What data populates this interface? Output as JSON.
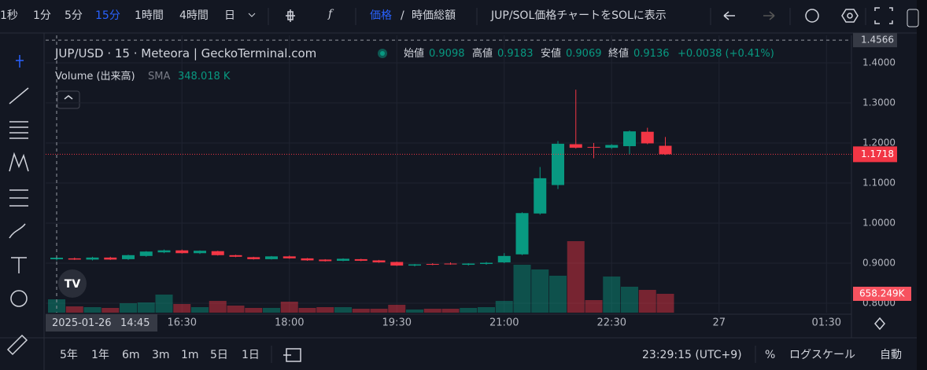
{
  "toolbar": {
    "intervals": [
      "1秒",
      "1分",
      "5分",
      "15分",
      "1時間",
      "4時間",
      "日"
    ],
    "active_interval": "15分",
    "price_toggle": "価格",
    "separator": "/",
    "market_cap": "時価総額",
    "sol_toggle": "JUP/SOL価格チャートをSOLに表示"
  },
  "legend": {
    "title": "JUP/USD · 15 · Meteora | GeckoTerminal.com",
    "open_label": "始値",
    "open": "0.9098",
    "high_label": "高値",
    "high": "0.9183",
    "low_label": "安値",
    "low": "0.9069",
    "close_label": "終値",
    "close": "0.9136",
    "change": "+0.0038 (+0.41%)",
    "volume_title": "Volume (出来高)",
    "sma_label": "SMA",
    "sma_value": "348.018 K"
  },
  "bottom_bar": {
    "ranges": [
      "5年",
      "1年",
      "6m",
      "3m",
      "1m",
      "5日",
      "1日"
    ],
    "clock": "23:29:15 (UTC+9)",
    "percent": "%",
    "log_scale": "ログスケール",
    "auto": "自動"
  },
  "chart_data": {
    "type": "candlestick",
    "x": [
      "14:45",
      "15:00",
      "15:15",
      "15:30",
      "15:45",
      "16:00",
      "16:15",
      "16:30",
      "16:45",
      "17:00",
      "17:15",
      "17:30",
      "17:45",
      "18:00",
      "18:15",
      "18:30",
      "18:45",
      "19:00",
      "19:15",
      "19:30",
      "19:45",
      "20:00",
      "20:15",
      "20:30",
      "20:45",
      "21:00",
      "21:15",
      "21:30",
      "21:45",
      "22:00",
      "22:15",
      "22:30",
      "22:45",
      "23:00",
      "23:15"
    ],
    "open": [
      0.9098,
      0.912,
      0.909,
      0.914,
      0.91,
      0.918,
      0.927,
      0.932,
      0.925,
      0.93,
      0.92,
      0.915,
      0.91,
      0.917,
      0.912,
      0.909,
      0.906,
      0.91,
      0.907,
      0.903,
      0.894,
      0.898,
      0.899,
      0.896,
      0.898,
      0.902,
      0.922,
      1.024,
      1.095,
      1.197,
      1.19,
      1.188,
      1.192,
      1.228,
      1.193
    ],
    "high": [
      0.9183,
      0.914,
      0.916,
      0.916,
      0.921,
      0.93,
      0.934,
      0.934,
      0.932,
      0.931,
      0.921,
      0.916,
      0.918,
      0.919,
      0.913,
      0.91,
      0.912,
      0.911,
      0.908,
      0.904,
      0.898,
      0.9,
      0.902,
      0.9,
      0.903,
      0.925,
      1.027,
      1.14,
      1.205,
      1.333,
      1.2,
      1.197,
      1.231,
      1.238,
      1.215
    ],
    "low": [
      0.9069,
      0.908,
      0.907,
      0.908,
      0.908,
      0.916,
      0.925,
      0.924,
      0.923,
      0.919,
      0.915,
      0.909,
      0.909,
      0.911,
      0.906,
      0.904,
      0.905,
      0.905,
      0.901,
      0.893,
      0.892,
      0.895,
      0.896,
      0.894,
      0.896,
      0.9,
      0.92,
      1.021,
      1.085,
      1.186,
      1.162,
      1.185,
      1.172,
      1.197,
      1.17
    ],
    "close": [
      0.9136,
      0.909,
      0.914,
      0.909,
      0.92,
      0.929,
      0.932,
      0.925,
      0.931,
      0.92,
      0.916,
      0.91,
      0.917,
      0.912,
      0.907,
      0.905,
      0.911,
      0.906,
      0.902,
      0.894,
      0.897,
      0.896,
      0.897,
      0.899,
      0.901,
      0.918,
      1.025,
      1.112,
      1.198,
      1.188,
      1.189,
      1.195,
      1.229,
      1.199,
      1.1718
    ],
    "volume": [
      466000,
      219000,
      192000,
      165000,
      329000,
      356000,
      631000,
      302000,
      192000,
      411000,
      247000,
      165000,
      165000,
      384000,
      165000,
      192000,
      192000,
      137000,
      137000,
      274000,
      110000,
      137000,
      137000,
      165000,
      192000,
      411000,
      1673000,
      1508000,
      1289000,
      2496000,
      439000,
      1262000,
      905000,
      795000,
      658249
    ],
    "last_volume_label": "658.249K",
    "up_color": "#089981",
    "down_color": "#f23645",
    "ylim": [
      0.7765,
      1.4686
    ],
    "volume_ylim": [
      0,
      9680000
    ],
    "yticks": [
      {
        "value": 1.4,
        "label": "1.4000"
      },
      {
        "value": 1.3,
        "label": "1.3000"
      },
      {
        "value": 1.2,
        "label": "1.2000"
      },
      {
        "value": 1.1,
        "label": "1.1000"
      },
      {
        "value": 1.0,
        "label": "1.0000"
      },
      {
        "value": 0.9,
        "label": "0.9000"
      },
      {
        "value": 0.8,
        "label": "0.8000"
      }
    ],
    "top_price": {
      "value": 1.4566,
      "label": "1.4566"
    },
    "last_price": {
      "value": 1.1718,
      "label": "1.1718"
    },
    "xticks": [
      {
        "value": 7,
        "label": "16:30"
      },
      {
        "value": 13,
        "label": "18:00"
      },
      {
        "value": 19,
        "label": "19:30"
      },
      {
        "value": 25,
        "label": "21:00"
      },
      {
        "value": 31,
        "label": "22:30"
      },
      {
        "value": 37,
        "label": "27"
      },
      {
        "value": 43,
        "label": "01:30"
      }
    ],
    "crosshair_date": "2025-01-26",
    "grid": true
  }
}
